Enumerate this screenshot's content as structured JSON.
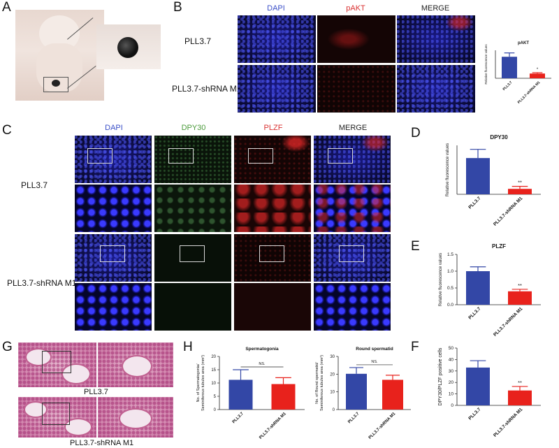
{
  "panels": {
    "A": "A",
    "B": "B",
    "C": "C",
    "D": "D",
    "E": "E",
    "F": "F",
    "G": "G",
    "H": "H"
  },
  "panel_b": {
    "col_heads": [
      "DAPI",
      "pAKT",
      "MERGE"
    ],
    "col_colors": [
      "#3a4fc8",
      "#d93030",
      "#222222"
    ],
    "rows": [
      "PLL3.7",
      "PLL3.7-shRNA M1"
    ]
  },
  "panel_c": {
    "col_heads": [
      "DAPI",
      "DPY30",
      "PLZF",
      "MERGE"
    ],
    "col_colors": [
      "#3a4fc8",
      "#4a9a3a",
      "#d93030",
      "#222222"
    ],
    "rows": [
      "PLL3.7",
      "PLL3.7-shRNA M1"
    ]
  },
  "panel_g": {
    "labels": [
      "PLL3.7",
      "PLL3.7-shRNA M1"
    ]
  },
  "colors": {
    "control": "#3347a6",
    "knockdown": "#e8221c"
  },
  "chart_data": [
    {
      "id": "pakt",
      "type": "bar",
      "title": "pAKT",
      "ylabel": "Relative fluorescence values",
      "categories": [
        "PLL3.7",
        "PLL3.7-shRNA M1"
      ],
      "values": [
        1.0,
        0.22
      ],
      "errors": [
        0.18,
        0.04
      ],
      "ylim": [
        0,
        1.3
      ],
      "yticks": [],
      "significance": "*"
    },
    {
      "id": "dpy30",
      "type": "bar",
      "title": "DPY30",
      "ylabel": "Relative fluorescence values",
      "categories": [
        "PLL3.7",
        "PLL3.7-shRNA M1"
      ],
      "values": [
        1.0,
        0.15
      ],
      "errors": [
        0.24,
        0.07
      ],
      "ylim": [
        0,
        1.35
      ],
      "yticks": [],
      "significance": "**"
    },
    {
      "id": "plzf",
      "type": "bar",
      "title": "PLZF",
      "ylabel": "Relative fluorescence values",
      "categories": [
        "PLL3.7",
        "PLL3.7-shRNA M1"
      ],
      "values": [
        1.0,
        0.4
      ],
      "errors": [
        0.13,
        0.06
      ],
      "ylim": [
        0,
        1.5
      ],
      "yticks": [
        "0.0",
        "0.5",
        "1.0",
        "1.5"
      ],
      "significance": "**"
    },
    {
      "id": "dpy30plzf",
      "type": "bar",
      "title": "",
      "ylabel": "DPY30/PLZF positive cells",
      "categories": [
        "PLL3.7",
        "PLL3.7-shRNA M1"
      ],
      "values": [
        33,
        13
      ],
      "errors": [
        6,
        3.5
      ],
      "ylim": [
        0,
        50
      ],
      "yticks": [
        "0",
        "10",
        "20",
        "30",
        "40",
        "50"
      ],
      "significance": "**"
    },
    {
      "id": "spermatogonia",
      "type": "bar",
      "title": "Spermatogonia",
      "ylabel": "No. of Spermatogonia/ Seminiferous tubules area (mm²)",
      "categories": [
        "PLL3.7",
        "PLL3.7-shRNA M1"
      ],
      "values": [
        11.2,
        9.6
      ],
      "errors": [
        3.8,
        2.4
      ],
      "ylim": [
        0,
        20
      ],
      "yticks": [
        "0",
        "5",
        "10",
        "15",
        "20"
      ],
      "significance": "NS."
    },
    {
      "id": "roundspermatid",
      "type": "bar",
      "title": "Round spermatid",
      "ylabel": "No. of Round spermatid/ Seminiferous tubules area (mm²)",
      "categories": [
        "PLL3.7",
        "PLL3.7-shRNA M1"
      ],
      "values": [
        20.2,
        16.8
      ],
      "errors": [
        3.5,
        2.6
      ],
      "ylim": [
        0,
        30
      ],
      "yticks": [
        "0",
        "10",
        "20",
        "30"
      ],
      "significance": "NS."
    }
  ]
}
